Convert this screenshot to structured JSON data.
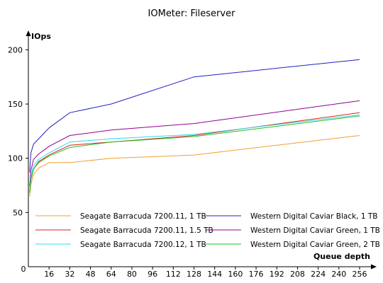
{
  "chart_data": {
    "type": "line",
    "title": "IOMeter: Fileserver",
    "xlabel": "Queue depth",
    "ylabel": "IOps",
    "xlim": [
      0,
      264
    ],
    "ylim": [
      0,
      212
    ],
    "x_ticks": [
      16,
      32,
      48,
      64,
      80,
      96,
      112,
      128,
      144,
      160,
      176,
      192,
      208,
      224,
      240,
      256
    ],
    "y_ticks": [
      50,
      100,
      150,
      200
    ],
    "origin_label": "0",
    "grid": false,
    "legend_placement": "bottom",
    "series": [
      {
        "name": "Seagate Barracuda 7200.11, 1 TB",
        "color": "#f0a030",
        "x": [
          1,
          2,
          4,
          8,
          16,
          32,
          64,
          128,
          256
        ],
        "y": [
          65,
          76,
          85,
          91,
          96,
          96,
          100,
          103,
          121
        ]
      },
      {
        "name": "Western Digital Caviar Black, 1 TB",
        "color": "#2020c0",
        "x": [
          1,
          2,
          4,
          8,
          16,
          32,
          64,
          128,
          256
        ],
        "y": [
          87,
          105,
          113,
          118,
          128,
          142,
          150,
          175,
          191
        ]
      },
      {
        "name": "Seagate Barracuda 7200.11, 1.5 TB",
        "color": "#e02020",
        "x": [
          1,
          2,
          4,
          8,
          16,
          32,
          64,
          128,
          256
        ],
        "y": [
          69,
          81,
          90,
          97,
          103,
          112,
          115,
          121,
          142
        ]
      },
      {
        "name": "Western Digital Caviar Green, 1 TB",
        "color": "#900090",
        "x": [
          1,
          2,
          4,
          8,
          16,
          32,
          64,
          128,
          256
        ],
        "y": [
          74,
          89,
          99,
          104,
          111,
          121,
          126,
          132,
          153
        ]
      },
      {
        "name": "Seagate Barracuda 7200.12, 1 TB",
        "color": "#30d8e8",
        "x": [
          1,
          2,
          4,
          8,
          16,
          32,
          64,
          128,
          256
        ],
        "y": [
          70,
          83,
          93,
          99,
          105,
          115,
          118,
          122,
          140
        ]
      },
      {
        "name": "Western Digital Caviar Green, 2 TB",
        "color": "#20c020",
        "x": [
          1,
          2,
          4,
          8,
          16,
          32,
          64,
          128,
          256
        ],
        "y": [
          68,
          80,
          90,
          96,
          102,
          110,
          115,
          120,
          139
        ]
      }
    ]
  }
}
